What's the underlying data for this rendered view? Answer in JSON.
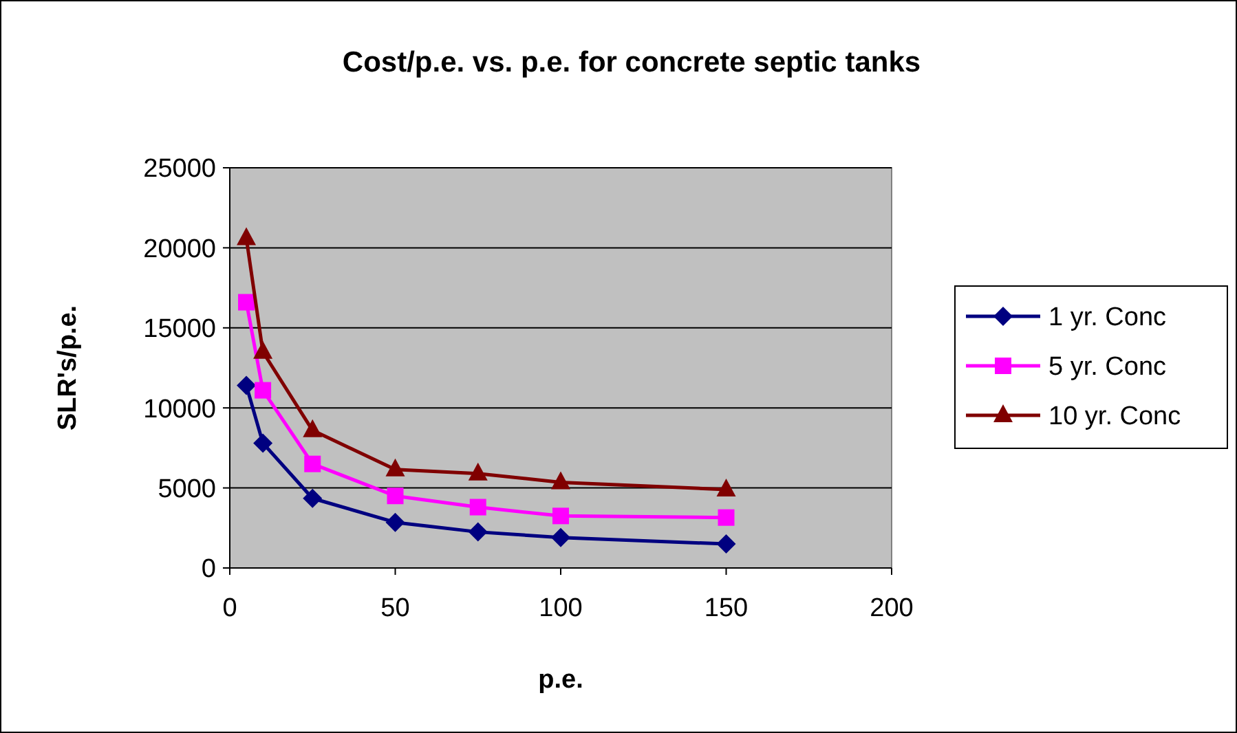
{
  "chart_data": {
    "type": "line",
    "title": "Cost/p.e. vs. p.e. for concrete septic tanks",
    "xlabel": "p.e.",
    "ylabel": "SLR's/p.e.",
    "x": [
      5,
      10,
      25,
      50,
      75,
      100,
      150
    ],
    "series": [
      {
        "name": "1 yr. Conc",
        "color": "#000080",
        "marker": "diamond",
        "values": [
          11400,
          7800,
          4350,
          2850,
          2250,
          1900,
          1500
        ]
      },
      {
        "name": "5 yr. Conc",
        "color": "#ff00ff",
        "marker": "square",
        "values": [
          16600,
          11100,
          6500,
          4500,
          3800,
          3250,
          3150
        ]
      },
      {
        "name": "10 yr. Conc",
        "color": "#800000",
        "marker": "triangle",
        "values": [
          20600,
          13500,
          8600,
          6150,
          5900,
          5350,
          4900
        ]
      }
    ],
    "xlim": [
      0,
      200
    ],
    "xticks": [
      0,
      50,
      100,
      150,
      200
    ],
    "ylim": [
      0,
      25000
    ],
    "yticks": [
      0,
      5000,
      10000,
      15000,
      20000,
      25000
    ],
    "grid": "y",
    "legend": "right"
  }
}
